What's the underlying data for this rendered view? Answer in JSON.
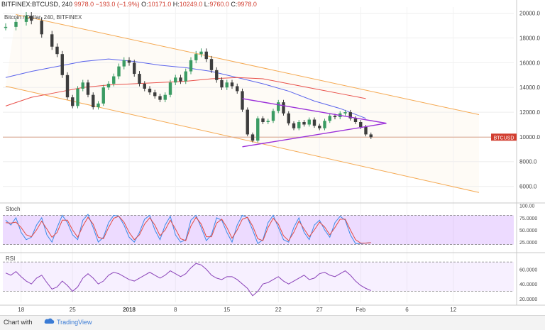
{
  "header": {
    "symbol": "BITFINEX:BTCUSD, 240",
    "ohlc": [
      {
        "label": "",
        "value": "9978.0"
      },
      {
        "label": "",
        "value": "−193.0 (−1.9%)"
      },
      {
        "label": "O:",
        "value": "10171.0"
      },
      {
        "label": "H:",
        "value": "10249.0"
      },
      {
        "label": "L:",
        "value": "9760.0"
      },
      {
        "label": "C:",
        "value": "9978.0"
      }
    ],
    "subtitle": "Bitcoin / Dollar, 240, BITFINEX"
  },
  "footer": {
    "prefix": "Chart with",
    "brand": "TradingView"
  },
  "colors": {
    "up": "#3b9b63",
    "down": "#3d3d3d",
    "channel": "#f5a952",
    "triangle": "#9b30d9",
    "ma_fast": "#5b64ec",
    "ma_slow": "#e9504a",
    "stoch_k": "#3a8be8",
    "stoch_d": "#e24b44",
    "rsi": "#8a42b8",
    "price_tag": "#d23f31"
  },
  "chart_data": [
    {
      "type": "candlestick",
      "panel": "price",
      "ylim": [
        5000,
        20500
      ],
      "y_ticks": [
        "20000.0",
        "18000.0",
        "16000.0",
        "14000.0",
        "12000.0",
        "10000.0",
        "8000.0",
        "6000.0"
      ],
      "x_ticks": [
        "18",
        "25",
        "2018",
        "8",
        "15",
        "22",
        "27",
        "Feb",
        "6",
        "12"
      ],
      "last_price_label": "BTCUSD",
      "last_price": 9978,
      "points": [
        {
          "x": 0,
          "y": 18900
        },
        {
          "x": 2,
          "y": 19300
        },
        {
          "x": 4,
          "y": 19800
        },
        {
          "x": 5,
          "y": 19400
        },
        {
          "x": 7,
          "y": 18300
        },
        {
          "x": 9,
          "y": 17300
        },
        {
          "x": 10,
          "y": 16700
        },
        {
          "x": 11,
          "y": 15000
        },
        {
          "x": 12,
          "y": 13200
        },
        {
          "x": 13,
          "y": 12500
        },
        {
          "x": 14,
          "y": 13900
        },
        {
          "x": 15,
          "y": 14400
        },
        {
          "x": 16,
          "y": 13400
        },
        {
          "x": 17,
          "y": 12400
        },
        {
          "x": 18,
          "y": 12700
        },
        {
          "x": 19,
          "y": 14000
        },
        {
          "x": 20,
          "y": 14300
        },
        {
          "x": 21,
          "y": 14900
        },
        {
          "x": 22,
          "y": 15700
        },
        {
          "x": 23,
          "y": 16200
        },
        {
          "x": 24,
          "y": 16000
        },
        {
          "x": 25,
          "y": 15100
        },
        {
          "x": 26,
          "y": 14300
        },
        {
          "x": 27,
          "y": 13900
        },
        {
          "x": 28,
          "y": 13600
        },
        {
          "x": 29,
          "y": 13300
        },
        {
          "x": 30,
          "y": 13000
        },
        {
          "x": 31,
          "y": 13400
        },
        {
          "x": 32,
          "y": 14400
        },
        {
          "x": 33,
          "y": 14800
        },
        {
          "x": 34,
          "y": 14500
        },
        {
          "x": 35,
          "y": 15300
        },
        {
          "x": 36,
          "y": 16200
        },
        {
          "x": 37,
          "y": 16700
        },
        {
          "x": 38,
          "y": 16900
        },
        {
          "x": 39,
          "y": 16300
        },
        {
          "x": 40,
          "y": 15400
        },
        {
          "x": 41,
          "y": 14600
        },
        {
          "x": 42,
          "y": 14000
        },
        {
          "x": 43,
          "y": 14400
        },
        {
          "x": 44,
          "y": 14100
        },
        {
          "x": 45,
          "y": 13700
        },
        {
          "x": 46,
          "y": 12200
        },
        {
          "x": 47,
          "y": 10200
        },
        {
          "x": 48,
          "y": 9700
        },
        {
          "x": 49,
          "y": 11500
        },
        {
          "x": 50,
          "y": 11200
        },
        {
          "x": 51,
          "y": 11300
        },
        {
          "x": 52,
          "y": 12100
        },
        {
          "x": 53,
          "y": 12800
        },
        {
          "x": 54,
          "y": 11900
        },
        {
          "x": 55,
          "y": 11100
        },
        {
          "x": 56,
          "y": 10700
        },
        {
          "x": 57,
          "y": 11200
        },
        {
          "x": 58,
          "y": 11000
        },
        {
          "x": 59,
          "y": 11400
        },
        {
          "x": 60,
          "y": 10900
        },
        {
          "x": 61,
          "y": 10700
        },
        {
          "x": 62,
          "y": 11300
        },
        {
          "x": 63,
          "y": 11700
        },
        {
          "x": 64,
          "y": 11600
        },
        {
          "x": 65,
          "y": 11900
        },
        {
          "x": 66,
          "y": 12000
        },
        {
          "x": 67,
          "y": 11500
        },
        {
          "x": 68,
          "y": 11200
        },
        {
          "x": 69,
          "y": 10800
        },
        {
          "x": 70,
          "y": 10200
        },
        {
          "x": 71,
          "y": 9978
        }
      ],
      "series": [
        {
          "values_x": [
            0,
            5,
            10,
            15,
            20,
            25,
            30,
            35,
            40,
            45,
            50,
            55,
            60,
            65,
            70
          ],
          "values": [
            14800,
            15300,
            15700,
            16100,
            16300,
            16100,
            15800,
            15600,
            15300,
            14800,
            14300,
            13700,
            12900,
            12300,
            11500
          ]
        },
        {
          "values_x": [
            0,
            5,
            10,
            15,
            20,
            25,
            30,
            35,
            40,
            45,
            50,
            55,
            60,
            65,
            70
          ],
          "values": [
            12500,
            13200,
            13600,
            14000,
            14200,
            14300,
            14400,
            14500,
            14700,
            14800,
            14700,
            14300,
            13900,
            13500,
            13100
          ]
        }
      ],
      "annotations": {
        "channel_upper": [
          {
            "x": 2,
            "y": 19900
          },
          {
            "x": 92,
            "y": 11800
          }
        ],
        "channel_lower": [
          {
            "x": 0,
            "y": 14100
          },
          {
            "x": 92,
            "y": 5500
          }
        ],
        "triangle_upper": [
          {
            "x": 46,
            "y": 13100
          },
          {
            "x": 74,
            "y": 11100
          }
        ],
        "triangle_lower": [
          {
            "x": 46,
            "y": 9200
          },
          {
            "x": 74,
            "y": 11100
          }
        ],
        "horizontal_line": 9978
      }
    },
    {
      "type": "line",
      "panel": "stochastic",
      "indicator": "Stoch",
      "ylim": [
        15,
        85
      ],
      "y_ticks": [
        "100.00",
        "75.0000",
        "50.0000",
        "25.0000"
      ],
      "band": [
        20,
        80
      ],
      "series": [
        {
          "values": [
            70,
            60,
            75,
            45,
            30,
            35,
            60,
            75,
            40,
            25,
            55,
            80,
            65,
            40,
            30,
            70,
            82,
            55,
            25,
            35,
            65,
            80,
            78,
            60,
            35,
            25,
            45,
            72,
            80,
            50,
            30,
            60,
            78,
            40,
            25,
            30,
            70,
            80,
            55,
            28,
            40,
            75,
            70,
            45,
            25,
            60,
            80,
            75,
            50,
            22,
            30,
            65,
            80,
            55,
            30,
            25,
            55,
            75,
            45,
            30,
            60,
            70,
            50,
            35,
            65,
            78,
            70,
            40,
            22,
            22,
            23,
            24
          ]
        },
        {
          "values": [
            65,
            64,
            66,
            55,
            40,
            36,
            50,
            68,
            52,
            35,
            45,
            70,
            70,
            50,
            35,
            58,
            76,
            62,
            35,
            32,
            55,
            74,
            78,
            66,
            45,
            30,
            40,
            62,
            75,
            60,
            38,
            50,
            70,
            52,
            32,
            28,
            58,
            76,
            62,
            36,
            36,
            64,
            72,
            55,
            33,
            50,
            72,
            76,
            58,
            32,
            28,
            55,
            74,
            62,
            38,
            28,
            45,
            68,
            52,
            36,
            50,
            66,
            56,
            40,
            55,
            72,
            72,
            50,
            30,
            23,
            23,
            24
          ]
        }
      ]
    },
    {
      "type": "line",
      "panel": "rsi",
      "indicator": "RSI",
      "ylim": [
        15,
        75
      ],
      "y_ticks": [
        "60.0000",
        "40.0000",
        "20.0000"
      ],
      "band": [
        30,
        70
      ],
      "series": [
        {
          "values": [
            55,
            52,
            57,
            50,
            44,
            40,
            48,
            52,
            42,
            33,
            36,
            44,
            38,
            30,
            36,
            48,
            54,
            48,
            40,
            44,
            52,
            56,
            54,
            50,
            46,
            44,
            48,
            52,
            56,
            52,
            48,
            52,
            58,
            54,
            50,
            54,
            62,
            68,
            66,
            60,
            52,
            48,
            46,
            50,
            50,
            46,
            40,
            34,
            24,
            30,
            40,
            42,
            46,
            50,
            44,
            40,
            44,
            48,
            52,
            46,
            48,
            54,
            56,
            52,
            50,
            54,
            58,
            52,
            44,
            38,
            34,
            31
          ]
        }
      ]
    }
  ]
}
